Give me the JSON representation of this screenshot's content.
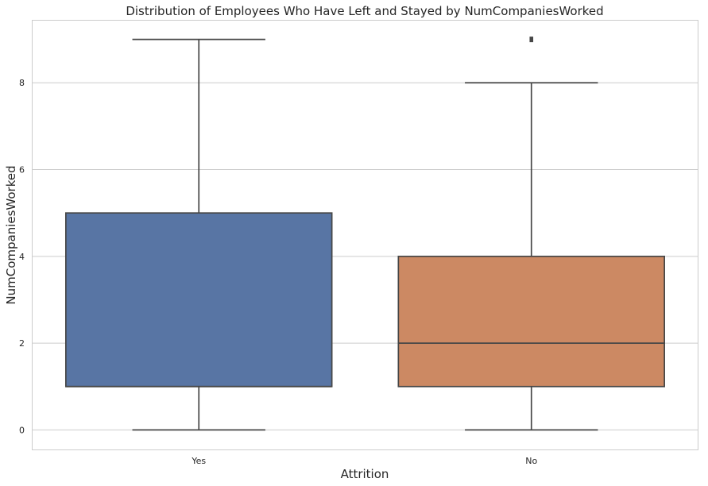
{
  "chart_data": {
    "type": "box",
    "title": "Distribution of Employees Who Have Left and Stayed by NumCompaniesWorked",
    "xlabel": "Attrition",
    "ylabel": "NumCompaniesWorked",
    "categories": [
      "Yes",
      "No"
    ],
    "yticks": [
      0,
      2,
      4,
      6,
      8
    ],
    "ylim": [
      -0.45,
      9.45
    ],
    "grid": "horizontal",
    "boxes": [
      {
        "category": "Yes",
        "min": 0,
        "q1": 1,
        "median": 1,
        "q3": 5,
        "max": 9,
        "outliers": [],
        "color": "#5875a4"
      },
      {
        "category": "No",
        "min": 0,
        "q1": 1,
        "median": 2,
        "q3": 4,
        "max": 8,
        "outliers": [
          9
        ],
        "color": "#cc8963"
      }
    ]
  }
}
